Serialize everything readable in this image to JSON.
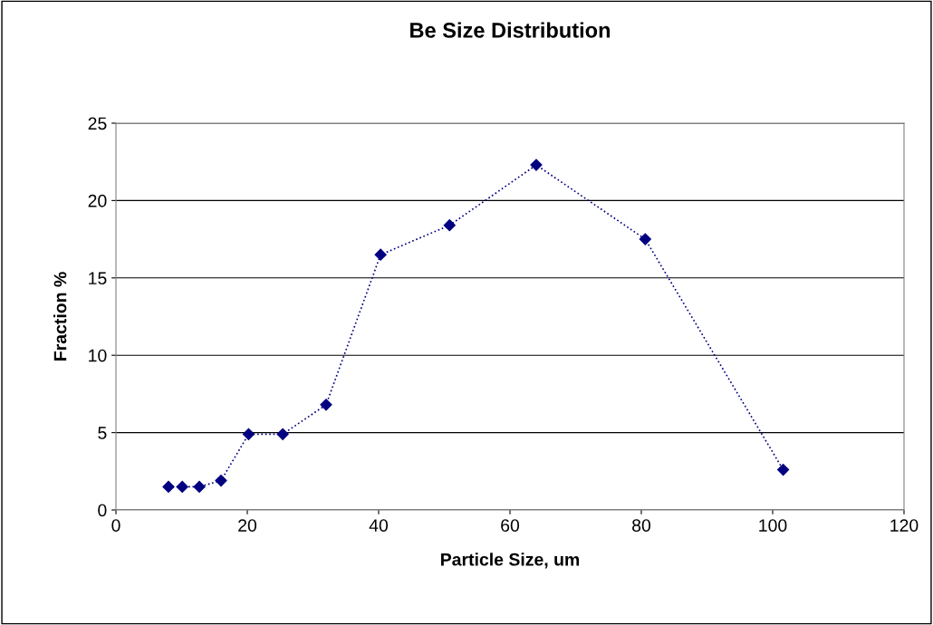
{
  "chart_data": {
    "type": "line",
    "title": "Be Size Distribution",
    "xlabel": "Particle Size, um",
    "ylabel": "Fraction %",
    "x": [
      8,
      10.1,
      12.7,
      16,
      20.2,
      25.4,
      32,
      40.3,
      50.8,
      64,
      80.6,
      101.6
    ],
    "series": [
      {
        "color": "#000080",
        "values": [
          1.5,
          1.5,
          1.5,
          1.9,
          4.9,
          4.9,
          6.8,
          16.5,
          18.4,
          22.3,
          17.5,
          2.6
        ]
      }
    ],
    "xlim": [
      0,
      120
    ],
    "xticks": [
      0,
      20,
      40,
      60,
      80,
      100,
      120
    ],
    "ylim": [
      0,
      25
    ],
    "yticks": [
      0,
      5,
      10,
      15,
      20,
      25
    ],
    "grid": "y",
    "legend": false,
    "marker": "diamond",
    "line_style": "dotted"
  }
}
